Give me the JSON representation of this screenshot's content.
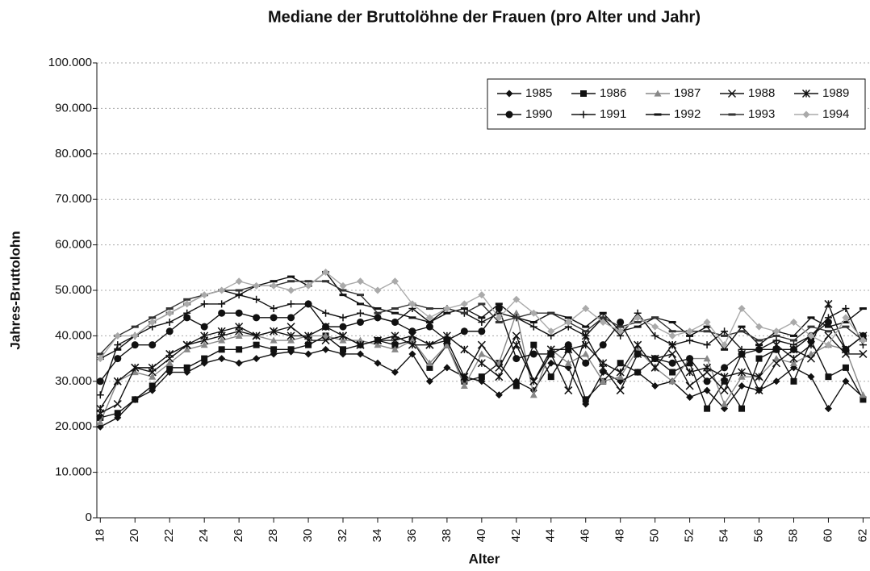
{
  "chart_data": {
    "type": "line",
    "title": "Mediane der Bruttolöhne der Frauen (pro Alter und Jahr)",
    "x_label": "Alter",
    "y_label": "Jahres-Bruttolohn",
    "x": [
      18,
      19,
      20,
      21,
      22,
      23,
      24,
      25,
      26,
      27,
      28,
      29,
      30,
      31,
      32,
      33,
      34,
      35,
      36,
      37,
      38,
      39,
      40,
      41,
      42,
      43,
      44,
      45,
      46,
      47,
      48,
      49,
      50,
      51,
      52,
      53,
      54,
      55,
      56,
      57,
      58,
      59,
      60,
      61,
      62
    ],
    "xlim": [
      17.8,
      62.4
    ],
    "xticks": [
      18,
      20,
      22,
      24,
      26,
      28,
      30,
      32,
      34,
      36,
      38,
      40,
      42,
      44,
      46,
      48,
      50,
      52,
      54,
      56,
      58,
      60,
      62
    ],
    "ylim": [
      0,
      100000
    ],
    "yticks": [
      {
        "value": 0,
        "label": "0"
      },
      {
        "value": 10000,
        "label": "10.000"
      },
      {
        "value": 20000,
        "label": "20.000"
      },
      {
        "value": 30000,
        "label": "30.000"
      },
      {
        "value": 40000,
        "label": "40.000"
      },
      {
        "value": 50000,
        "label": "50.000"
      },
      {
        "value": 60000,
        "label": "60.000"
      },
      {
        "value": 70000,
        "label": "70.000"
      },
      {
        "value": 80000,
        "label": "80.000"
      },
      {
        "value": 90000,
        "label": "90.000"
      },
      {
        "value": 100000,
        "label": "100.000"
      }
    ],
    "grid": true,
    "legend": "upper right",
    "series": [
      {
        "name": "1985",
        "color": "#111111",
        "marker": "diamond",
        "values": [
          20000,
          22000,
          26000,
          28000,
          32000,
          32000,
          34000,
          35000,
          34000,
          35000,
          36000,
          36500,
          36000,
          37000,
          36000,
          36000,
          34000,
          32000,
          36000,
          30000,
          33000,
          31000,
          30000,
          27000,
          30000,
          28000,
          34000,
          33000,
          25000,
          32000,
          30000,
          32000,
          29000,
          30000,
          26500,
          28000,
          24000,
          29000,
          28000,
          30000,
          33000,
          31000,
          24000,
          30000,
          26500
        ]
      },
      {
        "name": "1986",
        "color": "#111111",
        "marker": "square",
        "values": [
          22000,
          23000,
          26000,
          29000,
          33000,
          33000,
          35000,
          37000,
          37000,
          38000,
          37000,
          37000,
          38000,
          40000,
          37000,
          38000,
          39000,
          38000,
          39000,
          33000,
          38000,
          30000,
          31000,
          34000,
          29000,
          38000,
          31000,
          37000,
          26000,
          30000,
          34000,
          32000,
          35000,
          32000,
          34000,
          24000,
          30000,
          24000,
          35000,
          37000,
          30000,
          39000,
          31000,
          33000,
          26000
        ]
      },
      {
        "name": "1987",
        "color": "#888888",
        "marker": "triangle",
        "values": [
          21000,
          30000,
          32000,
          31000,
          34000,
          37000,
          38000,
          39000,
          40000,
          40000,
          39000,
          39000,
          40000,
          40000,
          39000,
          39000,
          38000,
          37000,
          39000,
          34000,
          38000,
          29000,
          36000,
          34000,
          45000,
          27000,
          37000,
          34000,
          36000,
          30000,
          31000,
          37000,
          33000,
          30000,
          35000,
          35000,
          25000,
          31000,
          31000,
          35000,
          34000,
          36000,
          38000,
          37000,
          27000
        ]
      },
      {
        "name": "1988",
        "color": "#111111",
        "marker": "x",
        "values": [
          23000,
          25000,
          33000,
          32000,
          35000,
          38000,
          39000,
          40000,
          41000,
          40000,
          41000,
          42000,
          39000,
          39000,
          40000,
          38000,
          39000,
          39000,
          40000,
          38000,
          39000,
          31000,
          38000,
          33000,
          40000,
          30000,
          36000,
          28000,
          40000,
          33000,
          28000,
          36000,
          35000,
          36000,
          29000,
          32000,
          28000,
          36000,
          28000,
          34000,
          37000,
          35000,
          40000,
          36000,
          36000
        ]
      },
      {
        "name": "1989",
        "color": "#111111",
        "marker": "star",
        "values": [
          24000,
          30000,
          33000,
          33000,
          36000,
          38000,
          40000,
          41000,
          42000,
          40000,
          41000,
          40000,
          40000,
          42000,
          40000,
          38000,
          39000,
          40000,
          38000,
          38000,
          40000,
          37000,
          34000,
          31000,
          38000,
          30000,
          37000,
          37000,
          38000,
          34000,
          32000,
          38000,
          33000,
          38000,
          32000,
          33000,
          31000,
          32000,
          31000,
          38000,
          35000,
          38000,
          47000,
          37000,
          40000
        ]
      },
      {
        "name": "1990",
        "color": "#111111",
        "marker": "circle",
        "values": [
          30000,
          35000,
          38000,
          38000,
          41000,
          44000,
          42000,
          45000,
          45000,
          44000,
          44000,
          44000,
          47000,
          42000,
          42000,
          43000,
          44000,
          43000,
          41000,
          42000,
          39000,
          41000,
          41000,
          46000,
          35000,
          36000,
          36000,
          38000,
          34000,
          38000,
          43000,
          36000,
          35000,
          34000,
          35000,
          30000,
          33000,
          36000,
          37000,
          37000,
          37000,
          40000,
          43000,
          37000,
          40000
        ]
      },
      {
        "name": "1991",
        "color": "#111111",
        "marker": "plus",
        "values": [
          27000,
          38000,
          40000,
          42000,
          43000,
          45000,
          47000,
          47000,
          49000,
          48000,
          46000,
          47000,
          47000,
          45000,
          44000,
          45000,
          44000,
          43000,
          46000,
          43000,
          46000,
          45000,
          43000,
          45000,
          44000,
          42000,
          40000,
          42000,
          40000,
          44000,
          40000,
          45000,
          40000,
          38000,
          39000,
          38000,
          41000,
          37000,
          37000,
          39000,
          38000,
          40000,
          44000,
          46000,
          38000
        ]
      },
      {
        "name": "1992",
        "color": "#111111",
        "marker": "dash",
        "values": [
          35000,
          37000,
          40000,
          43000,
          45000,
          47000,
          49000,
          50000,
          49000,
          51000,
          52000,
          53000,
          51000,
          54000,
          49000,
          47000,
          46000,
          45000,
          44000,
          43000,
          45000,
          46000,
          44000,
          47000,
          44000,
          43000,
          45000,
          44000,
          42000,
          45000,
          41000,
          42000,
          44000,
          43000,
          40000,
          42000,
          37000,
          42000,
          38000,
          41000,
          40000,
          44000,
          42000,
          43000,
          46000
        ]
      },
      {
        "name": "1993",
        "color": "#333333",
        "marker": "dash",
        "values": [
          36000,
          40000,
          42000,
          44000,
          46000,
          48000,
          49000,
          50000,
          50000,
          51000,
          51000,
          52000,
          52000,
          52000,
          50000,
          49000,
          45000,
          46000,
          47000,
          46000,
          46000,
          45000,
          47000,
          43000,
          44000,
          45000,
          45000,
          43000,
          41000,
          44000,
          42000,
          43000,
          44000,
          41000,
          41000,
          41000,
          40000,
          41000,
          39000,
          40000,
          39000,
          42000,
          41000,
          42000,
          39000
        ]
      },
      {
        "name": "1994",
        "color": "#aaaaaa",
        "marker": "diamond",
        "values": [
          35000,
          40000,
          40000,
          43000,
          45000,
          47000,
          49000,
          50000,
          52000,
          51000,
          51000,
          50000,
          51000,
          54000,
          51000,
          52000,
          50000,
          52000,
          47000,
          44000,
          46000,
          47000,
          49000,
          44000,
          48000,
          45000,
          41000,
          43000,
          46000,
          43000,
          41000,
          44000,
          42000,
          40000,
          41000,
          43000,
          38000,
          46000,
          42000,
          41000,
          43000,
          40000,
          38000,
          44000,
          39000
        ]
      }
    ]
  }
}
